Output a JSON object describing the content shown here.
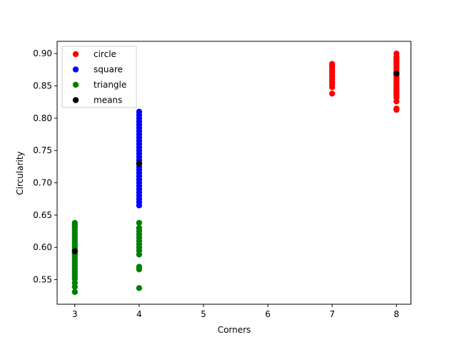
{
  "chart_data": {
    "type": "scatter",
    "title": "",
    "xlabel": "Corners",
    "ylabel": "Circularity",
    "xlim": [
      2.725,
      8.225
    ],
    "ylim": [
      0.512,
      0.919
    ],
    "xticks": [
      3,
      4,
      5,
      6,
      7,
      8
    ],
    "yticks": [
      0.55,
      0.6,
      0.65,
      0.7,
      0.75,
      0.8,
      0.85,
      0.9
    ],
    "ytick_labels": [
      "0.55",
      "0.60",
      "0.65",
      "0.70",
      "0.75",
      "0.80",
      "0.85",
      "0.90"
    ],
    "grid": false,
    "legend_position": "top-left",
    "series": [
      {
        "name": "circle",
        "color": "#ff0000",
        "points": [
          [
            7,
            0.838
          ],
          [
            7,
            0.848
          ],
          [
            7,
            0.852
          ],
          [
            7,
            0.856
          ],
          [
            7,
            0.86
          ],
          [
            7,
            0.864
          ],
          [
            7,
            0.867
          ],
          [
            7,
            0.871
          ],
          [
            7,
            0.874
          ],
          [
            7,
            0.878
          ],
          [
            7,
            0.881
          ],
          [
            7,
            0.884
          ],
          [
            8,
            0.813
          ],
          [
            8,
            0.815
          ],
          [
            8,
            0.826
          ],
          [
            8,
            0.832
          ],
          [
            8,
            0.835
          ],
          [
            8,
            0.838
          ],
          [
            8,
            0.841
          ],
          [
            8,
            0.844
          ],
          [
            8,
            0.847
          ],
          [
            8,
            0.85
          ],
          [
            8,
            0.853
          ],
          [
            8,
            0.856
          ],
          [
            8,
            0.859
          ],
          [
            8,
            0.862
          ],
          [
            8,
            0.865
          ],
          [
            8,
            0.868
          ],
          [
            8,
            0.871
          ],
          [
            8,
            0.874
          ],
          [
            8,
            0.877
          ],
          [
            8,
            0.88
          ],
          [
            8,
            0.883
          ],
          [
            8,
            0.886
          ],
          [
            8,
            0.889
          ],
          [
            8,
            0.892
          ],
          [
            8,
            0.895
          ],
          [
            8,
            0.9
          ]
        ]
      },
      {
        "name": "square",
        "color": "#0000ff",
        "points": [
          [
            4,
            0.665
          ],
          [
            4,
            0.67
          ],
          [
            4,
            0.675
          ],
          [
            4,
            0.68
          ],
          [
            4,
            0.685
          ],
          [
            4,
            0.69
          ],
          [
            4,
            0.695
          ],
          [
            4,
            0.7
          ],
          [
            4,
            0.705
          ],
          [
            4,
            0.71
          ],
          [
            4,
            0.715
          ],
          [
            4,
            0.72
          ],
          [
            4,
            0.725
          ],
          [
            4,
            0.73
          ],
          [
            4,
            0.735
          ],
          [
            4,
            0.74
          ],
          [
            4,
            0.745
          ],
          [
            4,
            0.75
          ],
          [
            4,
            0.755
          ],
          [
            4,
            0.76
          ],
          [
            4,
            0.765
          ],
          [
            4,
            0.77
          ],
          [
            4,
            0.775
          ],
          [
            4,
            0.78
          ],
          [
            4,
            0.785
          ],
          [
            4,
            0.79
          ],
          [
            4,
            0.795
          ],
          [
            4,
            0.8
          ],
          [
            4,
            0.805
          ],
          [
            4,
            0.81
          ]
        ]
      },
      {
        "name": "triangle",
        "color": "#008000",
        "points": [
          [
            3,
            0.531
          ],
          [
            3,
            0.539
          ],
          [
            3,
            0.545
          ],
          [
            3,
            0.551
          ],
          [
            3,
            0.555
          ],
          [
            3,
            0.559
          ],
          [
            3,
            0.563
          ],
          [
            3,
            0.567
          ],
          [
            3,
            0.571
          ],
          [
            3,
            0.575
          ],
          [
            3,
            0.579
          ],
          [
            3,
            0.583
          ],
          [
            3,
            0.587
          ],
          [
            3,
            0.591
          ],
          [
            3,
            0.595
          ],
          [
            3,
            0.599
          ],
          [
            3,
            0.603
          ],
          [
            3,
            0.607
          ],
          [
            3,
            0.611
          ],
          [
            3,
            0.615
          ],
          [
            3,
            0.619
          ],
          [
            3,
            0.623
          ],
          [
            3,
            0.627
          ],
          [
            3,
            0.631
          ],
          [
            3,
            0.635
          ],
          [
            3,
            0.638
          ],
          [
            4,
            0.537
          ],
          [
            4,
            0.566
          ],
          [
            4,
            0.57
          ],
          [
            4,
            0.589
          ],
          [
            4,
            0.595
          ],
          [
            4,
            0.6
          ],
          [
            4,
            0.605
          ],
          [
            4,
            0.61
          ],
          [
            4,
            0.615
          ],
          [
            4,
            0.62
          ],
          [
            4,
            0.625
          ],
          [
            4,
            0.63
          ],
          [
            4,
            0.638
          ]
        ]
      },
      {
        "name": "means",
        "color": "#000000",
        "points": [
          [
            3,
            0.594
          ],
          [
            4,
            0.73
          ],
          [
            8,
            0.869
          ]
        ]
      }
    ]
  }
}
